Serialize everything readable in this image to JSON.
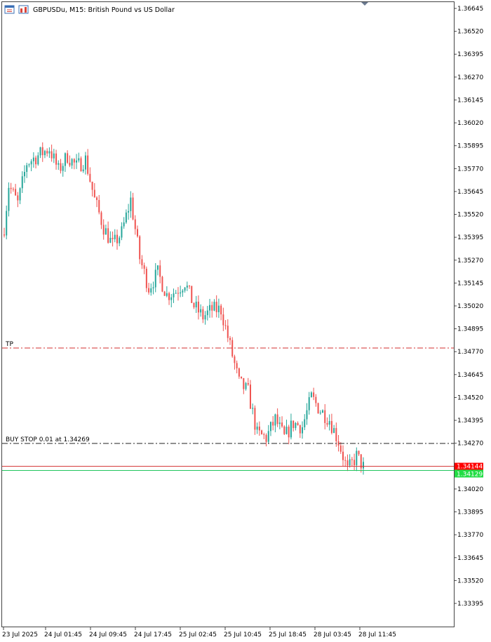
{
  "header": {
    "symbol_label": "GBPUSDu, M15:  British Pound vs US Dollar",
    "icons": [
      "chart-window-icon",
      "bar-chart-icon"
    ]
  },
  "colors": {
    "bull": "#26a69a",
    "bear": "#ef5350",
    "tp_line": "#d32f2f",
    "order_line": "#222222",
    "bid_line": "#d32f2f",
    "ask_line": "#22c55e",
    "bid_tag": "#ff0000",
    "ask_tag": "#22dd44",
    "frame": "#444444"
  },
  "chart_data": {
    "type": "candlestick",
    "title": "GBPUSDu, M15:  British Pound vs US Dollar",
    "ylim": [
      1.3327,
      1.367
    ],
    "y_ticks": [
      "1.36645",
      "1.36520",
      "1.36395",
      "1.36270",
      "1.36145",
      "1.36020",
      "1.35895",
      "1.35770",
      "1.35645",
      "1.35520",
      "1.35395",
      "1.35270",
      "1.35145",
      "1.35020",
      "1.34895",
      "1.34770",
      "1.34645",
      "1.34520",
      "1.34395",
      "1.34270",
      "1.34020",
      "1.33895",
      "1.33770",
      "1.33645",
      "1.33520",
      "1.33395"
    ],
    "x_ticks": [
      "23 Jul 2025",
      "24 Jul 01:45",
      "24 Jul 09:45",
      "24 Jul 17:45",
      "25 Jul 02:45",
      "25 Jul 10:45",
      "25 Jul 18:45",
      "28 Jul 03:45",
      "28 Jul 11:45"
    ],
    "anchors": [
      {
        "i": 0,
        "p": 1.3545
      },
      {
        "i": 2,
        "p": 1.3568
      },
      {
        "i": 6,
        "p": 1.3558
      },
      {
        "i": 10,
        "p": 1.358
      },
      {
        "i": 16,
        "p": 1.3585
      },
      {
        "i": 20,
        "p": 1.3588
      },
      {
        "i": 24,
        "p": 1.3576
      },
      {
        "i": 28,
        "p": 1.3584
      },
      {
        "i": 32,
        "p": 1.3578
      },
      {
        "i": 36,
        "p": 1.3582
      },
      {
        "i": 40,
        "p": 1.356
      },
      {
        "i": 44,
        "p": 1.3545
      },
      {
        "i": 48,
        "p": 1.3535
      },
      {
        "i": 52,
        "p": 1.3542
      },
      {
        "i": 56,
        "p": 1.356
      },
      {
        "i": 60,
        "p": 1.3528
      },
      {
        "i": 64,
        "p": 1.3512
      },
      {
        "i": 68,
        "p": 1.352
      },
      {
        "i": 72,
        "p": 1.3508
      },
      {
        "i": 76,
        "p": 1.351
      },
      {
        "i": 80,
        "p": 1.3515
      },
      {
        "i": 84,
        "p": 1.3502
      },
      {
        "i": 88,
        "p": 1.3496
      },
      {
        "i": 92,
        "p": 1.35
      },
      {
        "i": 96,
        "p": 1.35
      },
      {
        "i": 100,
        "p": 1.348
      },
      {
        "i": 104,
        "p": 1.346
      },
      {
        "i": 108,
        "p": 1.3455
      },
      {
        "i": 112,
        "p": 1.3432
      },
      {
        "i": 116,
        "p": 1.343
      },
      {
        "i": 120,
        "p": 1.344
      },
      {
        "i": 124,
        "p": 1.343
      },
      {
        "i": 128,
        "p": 1.3438
      },
      {
        "i": 132,
        "p": 1.3436
      },
      {
        "i": 136,
        "p": 1.3452
      },
      {
        "i": 140,
        "p": 1.3445
      },
      {
        "i": 144,
        "p": 1.344
      },
      {
        "i": 148,
        "p": 1.3428
      },
      {
        "i": 152,
        "p": 1.3412
      },
      {
        "i": 156,
        "p": 1.342
      },
      {
        "i": 159,
        "p": 1.3414
      }
    ],
    "levels": [
      {
        "label": "TP",
        "price": 1.3479,
        "style": "tp"
      },
      {
        "label": "BUY STOP 0.01 at 1.34269",
        "price": 1.34269,
        "style": "order"
      }
    ],
    "bid": {
      "price": 1.34144,
      "label": "1.34144"
    },
    "ask": {
      "price": 1.34129,
      "label": "1.34129"
    }
  }
}
